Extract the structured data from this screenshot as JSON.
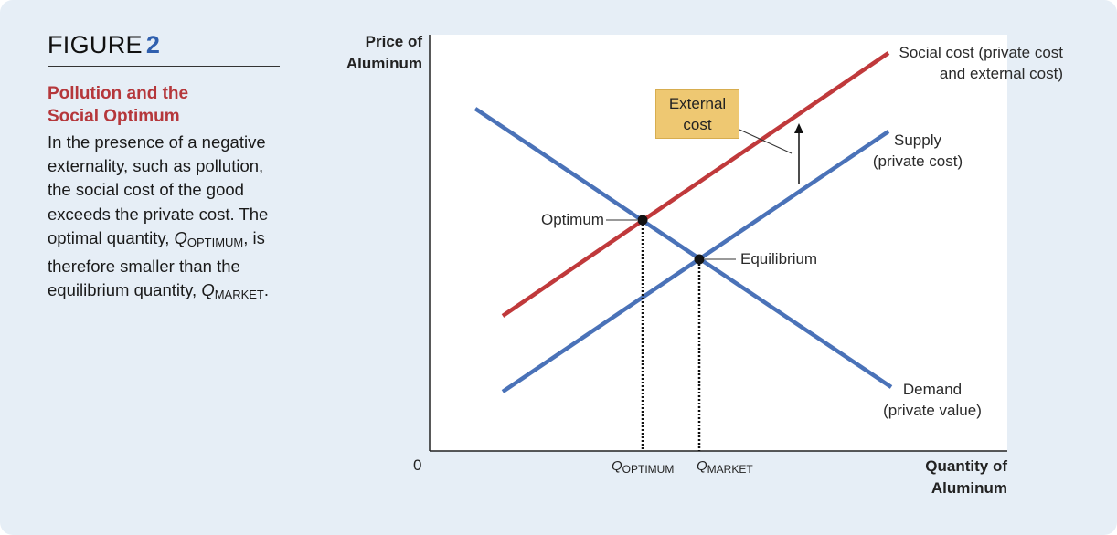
{
  "figure": {
    "label": "FIGURE",
    "number": "2",
    "title_line1": "Pollution and the",
    "title_line2": "Social Optimum",
    "body_part1": "In the presence of a negative externality, such as pollution, the social cost of the good exceeds the private cost. The optimal quantity, ",
    "q_letter": "Q",
    "q_optimum_sub": "OPTIMUM",
    "body_part2": ", is therefore smaller than the equilibrium quantity, ",
    "q_market_sub": "MARKET",
    "body_part3": "."
  },
  "diagram": {
    "y_axis_title_line1": "Price of",
    "y_axis_title_line2": "Aluminum",
    "x_axis_title_line1": "Quantity of",
    "x_axis_title_line2": "Aluminum",
    "origin_label": "0",
    "social_cost_label_line1": "Social cost (private cost",
    "social_cost_label_line2": "and external cost)",
    "supply_label_line1": "Supply",
    "supply_label_line2": "(private cost)",
    "demand_label_line1": "Demand",
    "demand_label_line2": "(private value)",
    "external_cost_line1": "External",
    "external_cost_line2": "cost",
    "optimum_label": "Optimum",
    "equilibrium_label": "Equilibrium",
    "q_optimum_letter": "Q",
    "q_optimum_sub": "OPTIMUM",
    "q_market_letter": "Q",
    "q_market_sub": "MARKET",
    "colors": {
      "social_cost_line": "#c0393b",
      "supply_demand_line": "#4a72b8",
      "box_fill": "#eec872",
      "title_accent": "#b5373b"
    }
  }
}
